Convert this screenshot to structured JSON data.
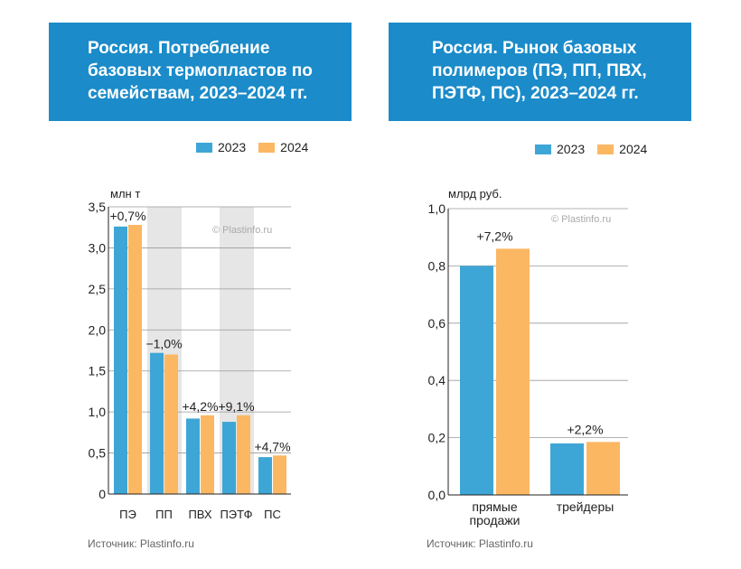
{
  "colors": {
    "y2023": "#3ea6d6",
    "y2024": "#fcb763",
    "header": "#1b8bc9",
    "shade": "#e6e6e6",
    "grid": "#9a9a9a"
  },
  "left_title_lines": [
    "Россия. Потребление",
    "базовых термопластов по",
    "семействам, 2023–2024 гг."
  ],
  "right_title_lines": [
    "Россия. Рынок базовых",
    "полимеров (ПЭ, ПП, ПВХ,",
    "ПЭТФ, ПС), 2023–2024 гг."
  ],
  "legend": [
    "2023",
    "2024"
  ],
  "watermark": "© Plastinfo.ru",
  "source": "Источник: Plastinfo.ru",
  "chart_data": [
    {
      "type": "bar",
      "title": "Россия. Потребление базовых термопластов по семействам, 2023–2024 гг.",
      "ylabel": "млн т",
      "xlabel": "",
      "ylim": [
        0,
        3.5
      ],
      "yticks": [
        "0",
        "0,5",
        "1,0",
        "1,5",
        "2,0",
        "2,5",
        "3,0",
        "3,5"
      ],
      "ytick_values": [
        0,
        0.5,
        1.0,
        1.5,
        2.0,
        2.5,
        3.0,
        3.5
      ],
      "categories": [
        "ПЭ",
        "ПП",
        "ПВХ",
        "ПЭТФ",
        "ПС"
      ],
      "shaded_categories": [
        1,
        3
      ],
      "series": [
        {
          "name": "2023",
          "values": [
            3.26,
            1.72,
            0.92,
            0.88,
            0.45
          ]
        },
        {
          "name": "2024",
          "values": [
            3.28,
            1.7,
            0.96,
            0.96,
            0.47
          ]
        }
      ],
      "change_labels": [
        "+0,7%",
        "−1,0%",
        "+4,2%",
        "+9,1%",
        "+4,7%"
      ]
    },
    {
      "type": "bar",
      "title": "Россия. Рынок базовых полимеров (ПЭ, ПП, ПВХ, ПЭТФ, ПС), 2023–2024 гг.",
      "ylabel": "млрд руб.",
      "xlabel": "",
      "ylim": [
        0,
        1.0
      ],
      "yticks": [
        "0,0",
        "0,2",
        "0,4",
        "0,6",
        "0,8",
        "1,0"
      ],
      "ytick_values": [
        0,
        0.2,
        0.4,
        0.6,
        0.8,
        1.0
      ],
      "categories": [
        [
          "прямые",
          "продажи"
        ],
        [
          "трейдеры"
        ]
      ],
      "series": [
        {
          "name": "2023",
          "values": [
            0.8,
            0.18
          ]
        },
        {
          "name": "2024",
          "values": [
            0.86,
            0.185
          ]
        }
      ],
      "change_labels": [
        "+7,2%",
        "+2,2%"
      ]
    }
  ]
}
